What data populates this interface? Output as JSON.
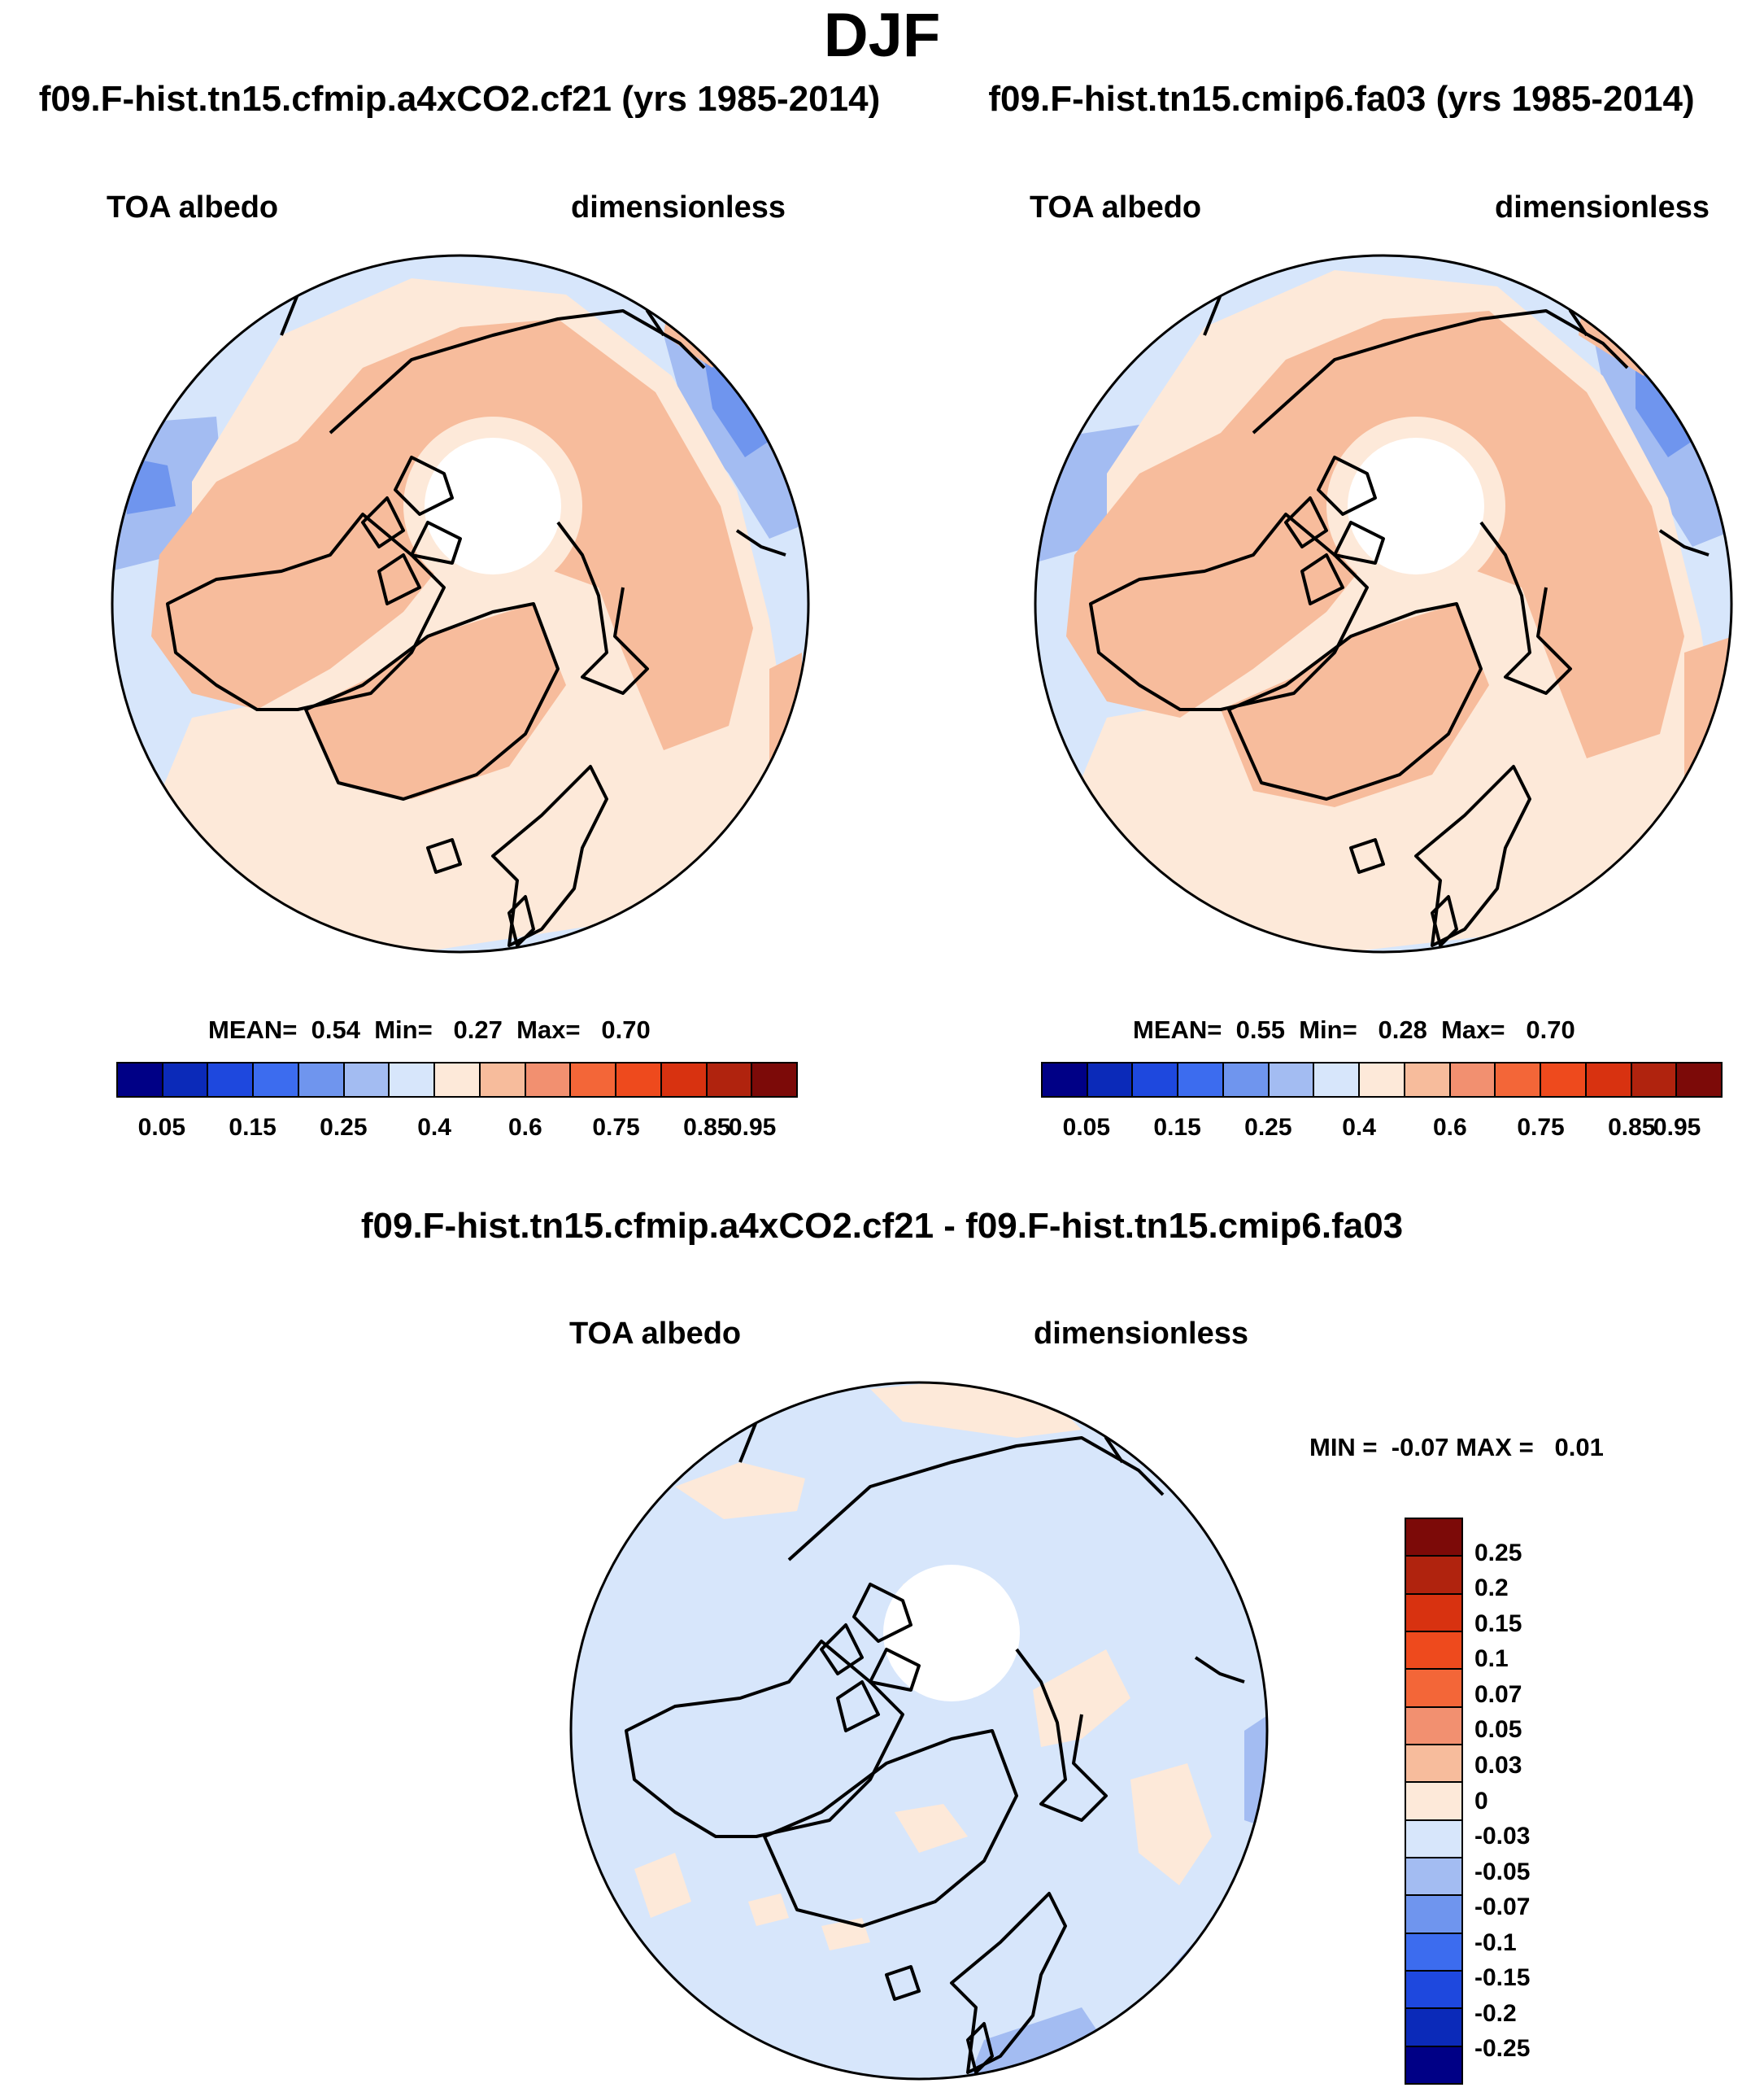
{
  "title": "DJF",
  "panels": [
    {
      "title": "f09.F-hist.tn15.cfmip.a4xCO2.cf21 (yrs 1985-2014)",
      "left_label": "TOA albedo",
      "right_label": "dimensionless",
      "stats": {
        "mean_label": "MEAN=",
        "mean": "0.54",
        "min_label": "Min=",
        "min": "0.27",
        "max_label": "Max=",
        "max": "0.70"
      }
    },
    {
      "title": "f09.F-hist.tn15.cmip6.fa03 (yrs 1985-2014)",
      "left_label": "TOA albedo",
      "right_label": "dimensionless",
      "stats": {
        "mean_label": "MEAN=",
        "mean": "0.55",
        "min_label": "Min=",
        "min": "0.28",
        "max_label": "Max=",
        "max": "0.70"
      }
    }
  ],
  "diff_panel": {
    "title": "f09.F-hist.tn15.cfmip.a4xCO2.cf21 - f09.F-hist.tn15.cmip6.fa03",
    "left_label": "TOA albedo",
    "right_label": "dimensionless",
    "stats": {
      "min_label": "MIN =",
      "min": "-0.07",
      "max_label": "MAX =",
      "max": "0.01"
    }
  },
  "abs_colorbar": {
    "colors": [
      "#000086",
      "#0b2ab9",
      "#1e48de",
      "#3c6cef",
      "#6f95ee",
      "#a3bcf2",
      "#d7e6fb",
      "#fde9d9",
      "#f7bc9c",
      "#f29070",
      "#f36638",
      "#ee4a1d",
      "#d83210",
      "#b0230e",
      "#7c0a08"
    ],
    "tick_labels": [
      "0.05",
      "0.15",
      "0.25",
      "0.4",
      "0.6",
      "0.75",
      "0.85",
      "0.95"
    ]
  },
  "diff_colorbar": {
    "colors": [
      "#7c0a08",
      "#b0230e",
      "#d83210",
      "#ee4a1d",
      "#f36638",
      "#f29070",
      "#f7bc9c",
      "#fde9d9",
      "#d7e6fb",
      "#a3bcf2",
      "#6f95ee",
      "#3c6cef",
      "#1e48de",
      "#0b2ab9",
      "#000086"
    ],
    "tick_labels": [
      "0.25",
      "0.2",
      "0.15",
      "0.1",
      "0.07",
      "0.05",
      "0.03",
      "0",
      "-0.03",
      "-0.05",
      "-0.07",
      "-0.1",
      "-0.15",
      "-0.2",
      "-0.25"
    ]
  },
  "map_colors": {
    "light_blue": "#d7e6fb",
    "mid_blue": "#a3bcf2",
    "blue": "#6f95ee",
    "peach": "#fde9d9",
    "salmon": "#f7bc9c",
    "white": "#ffffff"
  }
}
